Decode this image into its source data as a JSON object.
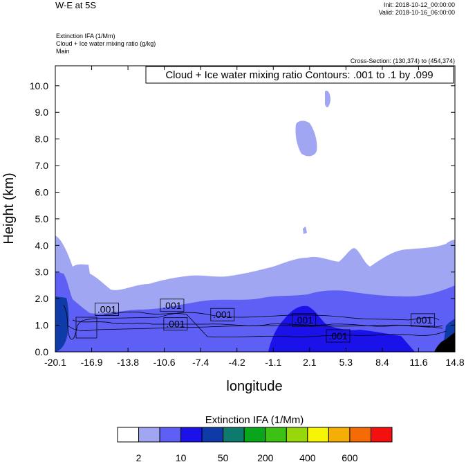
{
  "header": {
    "title": "W-E at 5S",
    "init": "Init: 2018-10-12_00:00:00",
    "valid": "Valid: 2018-10-16_06:00:00",
    "var_lines": [
      "Extinction IFA   (1/Mm)",
      "Cloud + Ice water mixing ratio   (g/kg)",
      "Main"
    ],
    "cross_section": "Cross-Section: (130,374) to (454,374)"
  },
  "chart_data": {
    "type": "heatmap",
    "contour_title": "Cloud + Ice water mixing ratio Contours: .001 to .1 by .099",
    "xlabel": "longitude",
    "ylabel": "Height (km)",
    "xlim": [
      -20.1,
      14.8
    ],
    "ylim": [
      0,
      10.75
    ],
    "x_ticks": [
      "-20.1",
      "-16.9",
      "-13.8",
      "-10.6",
      "-7.4",
      "-4.2",
      "-1.1",
      "2.1",
      "5.3",
      "8.4",
      "11.6",
      "14.8"
    ],
    "y_ticks": [
      "0.0",
      "1.0",
      "2.0",
      "3.0",
      "4.0",
      "5.0",
      "6.0",
      "7.0",
      "8.0",
      "9.0",
      "10.0"
    ],
    "contour_labels": [
      {
        "text": ".001",
        "lon": -15.6,
        "height": 1.6
      },
      {
        "text": ".001",
        "lon": -9.9,
        "height": 1.75
      },
      {
        "text": ".001",
        "lon": -9.6,
        "height": 1.05
      },
      {
        "text": ".001",
        "lon": -5.5,
        "height": 1.4
      },
      {
        "text": ".001",
        "lon": 1.6,
        "height": 1.2
      },
      {
        "text": ".001",
        "lon": 4.6,
        "height": 0.6
      },
      {
        "text": ".001",
        "lon": 12.0,
        "height": 1.2
      }
    ],
    "colorbar": {
      "title": "Extinction IFA  (1/Mm)",
      "colors": [
        "#ffffff",
        "#a0a6f2",
        "#5d5ff5",
        "#1a12e9",
        "#0f3ba8",
        "#0e7a6e",
        "#09a61b",
        "#3cc114",
        "#98d70c",
        "#f5f505",
        "#f5ae05",
        "#f56b05",
        "#f51010"
      ],
      "labels": [
        "2",
        "10",
        "50",
        "200",
        "400",
        "600"
      ]
    }
  }
}
